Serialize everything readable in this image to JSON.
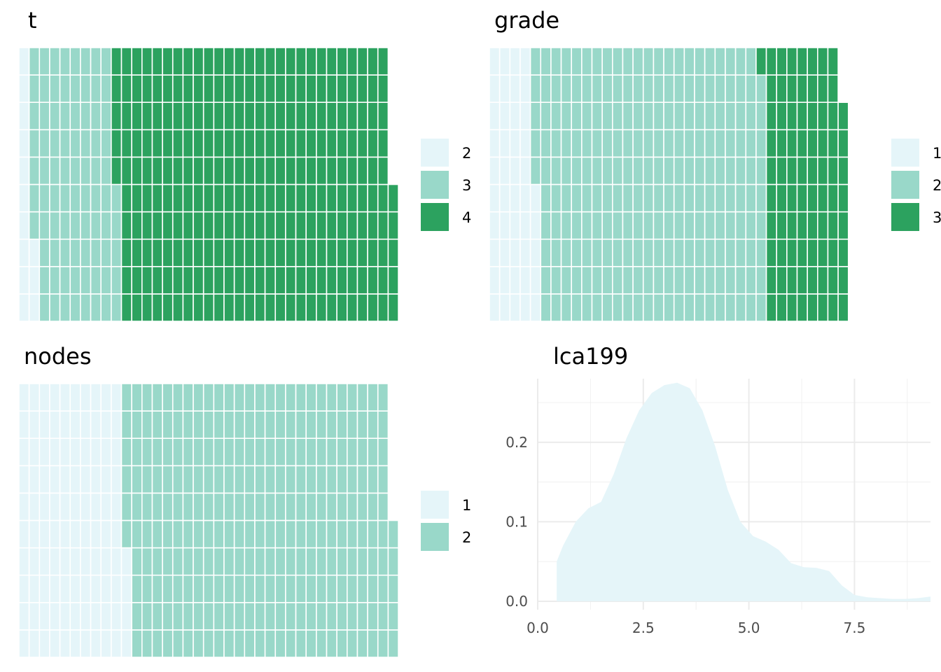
{
  "chart_data": [
    {
      "type": "waffle",
      "title": "t",
      "categories": [
        "2",
        "3",
        "4"
      ],
      "counts": [
        13,
        82,
        270
      ],
      "colors": [
        "#e5f5f9",
        "#99d8c9",
        "#2ca25f"
      ],
      "legend": "right"
    },
    {
      "type": "waffle",
      "title": "grade",
      "categories": [
        "1",
        "2",
        "3"
      ],
      "counts": [
        45,
        224,
        79
      ],
      "colors": [
        "#e5f5f9",
        "#99d8c9",
        "#2ca25f"
      ],
      "legend": "right"
    },
    {
      "type": "waffle",
      "title": "nodes",
      "categories": [
        "1",
        "2"
      ],
      "counts": [
        104,
        261
      ],
      "colors": [
        "#e5f5f9",
        "#99d8c9"
      ],
      "legend": "right"
    },
    {
      "type": "area",
      "title": "lca199",
      "x": [
        0.45,
        0.6,
        0.9,
        1.2,
        1.5,
        1.8,
        2.1,
        2.4,
        2.7,
        3.0,
        3.3,
        3.6,
        3.9,
        4.2,
        4.5,
        4.8,
        5.1,
        5.4,
        5.7,
        6.0,
        6.3,
        6.6,
        6.9,
        7.2,
        7.5,
        7.8,
        8.1,
        8.4,
        8.7,
        9.0,
        9.3
      ],
      "y": [
        0.05,
        0.07,
        0.1,
        0.117,
        0.125,
        0.16,
        0.205,
        0.24,
        0.262,
        0.272,
        0.275,
        0.268,
        0.24,
        0.195,
        0.14,
        0.1,
        0.082,
        0.075,
        0.065,
        0.048,
        0.043,
        0.042,
        0.038,
        0.02,
        0.008,
        0.005,
        0.004,
        0.003,
        0.003,
        0.004,
        0.006
      ],
      "xlim": [
        0,
        9.3
      ],
      "ylim": [
        0,
        0.28
      ],
      "x_ticks": [
        "0.0",
        "2.5",
        "5.0",
        "7.5"
      ],
      "x_tick_values": [
        0,
        2.5,
        5.0,
        7.5
      ],
      "y_ticks": [
        "0.0",
        "0.1",
        "0.2"
      ],
      "y_tick_values": [
        0,
        0.1,
        0.2
      ],
      "fill_color": "#e5f5f9",
      "grid": true
    }
  ]
}
